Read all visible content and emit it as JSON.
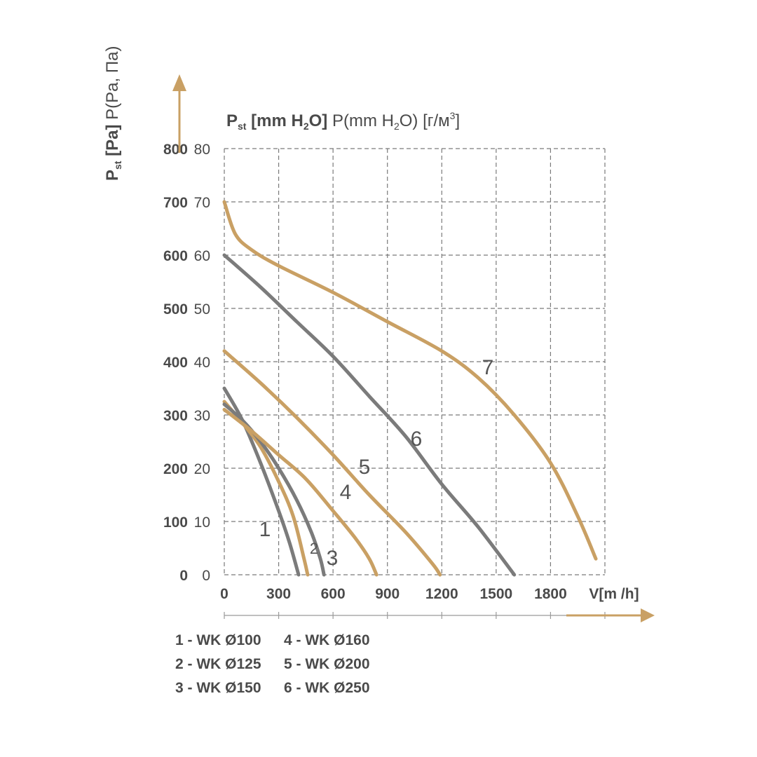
{
  "chart_data": {
    "type": "line",
    "title_parts": {
      "p": "P",
      "st": "st",
      "unit1_prefix": "[mm H",
      "sub2": "2",
      "unit1_suffix": "O]",
      "rest_prefix": "P(mm H",
      "rest_sub": "2",
      "rest_suffix": "O) [г/м",
      "rest_sup": "3",
      "rest_end": "]"
    },
    "ylabel_parts": {
      "p": "P",
      "st": "st",
      "unit": "[Pa]",
      "rest": "P(Pa, Па)"
    },
    "xlabel": "V[m /h]",
    "x_ticks": [
      "0",
      "300",
      "600",
      "900",
      "1200",
      "1500",
      "1800"
    ],
    "y_ticks_pa": [
      "0",
      "100",
      "200",
      "300",
      "400",
      "500",
      "600",
      "700",
      "800"
    ],
    "y_ticks_mm": [
      "0",
      "10",
      "20",
      "30",
      "40",
      "50",
      "60",
      "70",
      "80"
    ],
    "xlim": [
      0,
      2100
    ],
    "ylim": [
      0,
      800
    ],
    "grid": true,
    "colors": {
      "gold": "#c9a064",
      "gray": "#7b7b7b",
      "axis": "#9a9a9a",
      "arrow": "#c9a064"
    },
    "series": [
      {
        "label": "1",
        "color": "gray",
        "points": [
          [
            0,
            350
          ],
          [
            100,
            290
          ],
          [
            200,
            210
          ],
          [
            300,
            120
          ],
          [
            360,
            60
          ],
          [
            410,
            0
          ]
        ]
      },
      {
        "label": "2",
        "color": "gold",
        "points": [
          [
            0,
            325
          ],
          [
            100,
            285
          ],
          [
            200,
            240
          ],
          [
            300,
            175
          ],
          [
            380,
            110
          ],
          [
            440,
            30
          ],
          [
            460,
            0
          ]
        ]
      },
      {
        "label": "3",
        "color": "gray",
        "points": [
          [
            0,
            320
          ],
          [
            100,
            290
          ],
          [
            200,
            250
          ],
          [
            300,
            200
          ],
          [
            400,
            140
          ],
          [
            480,
            80
          ],
          [
            530,
            30
          ],
          [
            550,
            0
          ]
        ]
      },
      {
        "label": "4",
        "color": "gold",
        "points": [
          [
            0,
            310
          ],
          [
            150,
            270
          ],
          [
            300,
            225
          ],
          [
            450,
            180
          ],
          [
            600,
            120
          ],
          [
            720,
            70
          ],
          [
            800,
            30
          ],
          [
            840,
            0
          ]
        ]
      },
      {
        "label": "5",
        "color": "gold",
        "points": [
          [
            0,
            420
          ],
          [
            200,
            360
          ],
          [
            400,
            295
          ],
          [
            600,
            225
          ],
          [
            800,
            150
          ],
          [
            1000,
            80
          ],
          [
            1150,
            20
          ],
          [
            1190,
            0
          ]
        ]
      },
      {
        "label": "6",
        "color": "gray",
        "points": [
          [
            0,
            600
          ],
          [
            200,
            540
          ],
          [
            400,
            475
          ],
          [
            600,
            410
          ],
          [
            800,
            335
          ],
          [
            1000,
            260
          ],
          [
            1200,
            170
          ],
          [
            1400,
            90
          ],
          [
            1600,
            0
          ]
        ]
      },
      {
        "label": "7",
        "color": "gold",
        "points": [
          [
            0,
            700
          ],
          [
            60,
            640
          ],
          [
            150,
            610
          ],
          [
            300,
            580
          ],
          [
            600,
            530
          ],
          [
            900,
            475
          ],
          [
            1200,
            420
          ],
          [
            1400,
            370
          ],
          [
            1600,
            300
          ],
          [
            1800,
            210
          ],
          [
            1950,
            110
          ],
          [
            2050,
            30
          ]
        ]
      }
    ],
    "legend": [
      "1 - WK Ø100",
      "4 - WK Ø160",
      "2 - WK Ø125",
      "5 - WK Ø200",
      "3 - WK Ø150",
      "6 - WK Ø250"
    ]
  }
}
